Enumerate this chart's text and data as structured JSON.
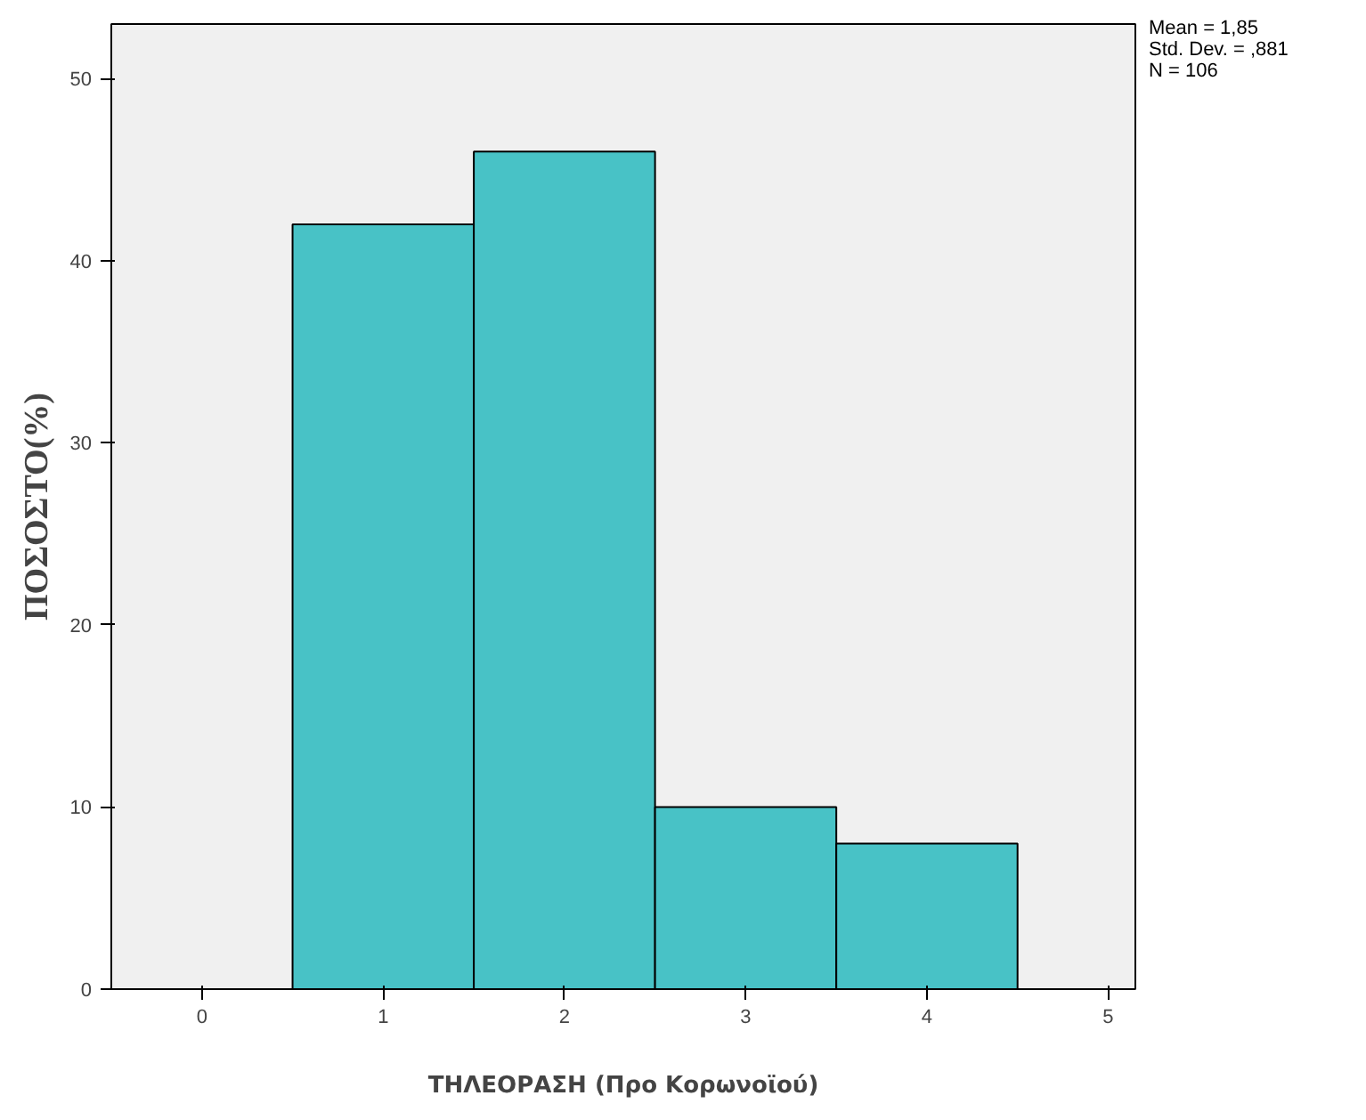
{
  "chart_data": {
    "type": "histogram",
    "xlabel": "ΤΗΛΕΟΡΑΣΗ (Προ Κορωνοϊού)",
    "ylabel": "ΠΟΣΟΣΤΟ(%)",
    "bins": [
      0.5,
      1.5,
      2.5,
      3.5,
      4.5
    ],
    "values": [
      42,
      46,
      10,
      8
    ],
    "color": "#48c2c6",
    "xlim": [
      -0.5,
      5.15
    ],
    "xticks": [
      0,
      1,
      2,
      3,
      4,
      5
    ],
    "ylim": [
      0,
      53
    ],
    "yticks": [
      0,
      10,
      20,
      30,
      40,
      50
    ],
    "grid": false,
    "annotations": [
      "Mean = 1,85",
      "Std. Dev. = ,881",
      "N = 106"
    ]
  }
}
